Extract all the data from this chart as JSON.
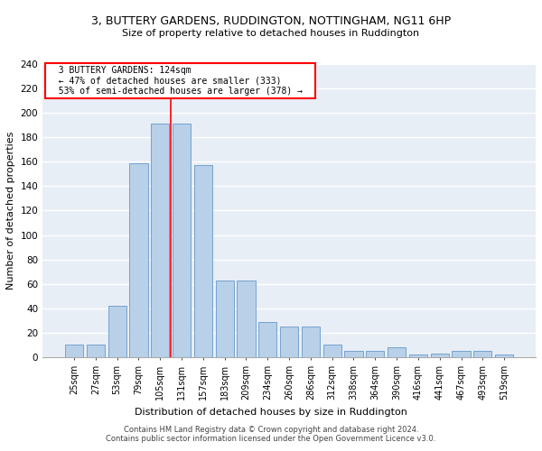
{
  "title": "3, BUTTERY GARDENS, RUDDINGTON, NOTTINGHAM, NG11 6HP",
  "subtitle": "Size of property relative to detached houses in Ruddington",
  "xlabel": "Distribution of detached houses by size in Ruddington",
  "ylabel": "Number of detached properties",
  "bar_color": "#b8d0e8",
  "bar_edge_color": "#6699cc",
  "bin_labels": [
    "25sqm",
    "27sqm",
    "53sqm",
    "79sqm",
    "105sqm",
    "131sqm",
    "157sqm",
    "183sqm",
    "209sqm",
    "234sqm",
    "260sqm",
    "286sqm",
    "312sqm",
    "338sqm",
    "364sqm",
    "390sqm",
    "416sqm",
    "441sqm",
    "467sqm",
    "493sqm",
    "519sqm"
  ],
  "bar_heights": [
    10,
    10,
    42,
    159,
    191,
    191,
    157,
    63,
    63,
    29,
    25,
    25,
    10,
    5,
    5,
    8,
    2,
    3,
    5,
    5,
    2
  ],
  "vline_x": 4.5,
  "annotation_text": "  3 BUTTERY GARDENS: 124sqm  \n  ← 47% of detached houses are smaller (333)  \n  53% of semi-detached houses are larger (378) →  ",
  "annotation_box_color": "white",
  "annotation_box_edge": "red",
  "vline_color": "red",
  "ylim": [
    0,
    240
  ],
  "yticks": [
    0,
    20,
    40,
    60,
    80,
    100,
    120,
    140,
    160,
    180,
    200,
    220,
    240
  ],
  "background_color": "#e8eef5",
  "grid_color": "white",
  "footer1": "Contains HM Land Registry data © Crown copyright and database right 2024.",
  "footer2": "Contains public sector information licensed under the Open Government Licence v3.0."
}
